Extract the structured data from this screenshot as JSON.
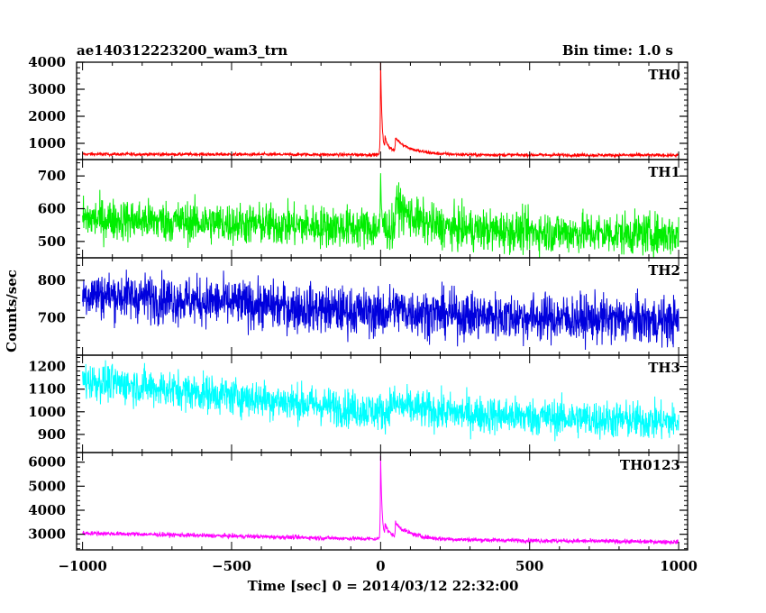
{
  "header": {
    "title": "ae140312223200_wam3_trn",
    "bin_time": "Bin time: 1.0 s"
  },
  "chart_data": {
    "type": "line",
    "xlabel": "Time [sec] 0 = 2014/03/12 22:32:00",
    "ylabel": "Counts/sec",
    "xlim": [
      -1020,
      1030
    ],
    "x_ticks": [
      -1000,
      -500,
      0,
      500,
      1000
    ],
    "x_tick_labels": [
      "−1000",
      "−500",
      "0",
      "500",
      "1000"
    ],
    "panels": [
      {
        "name": "TH0",
        "color": "#ff0000",
        "ylim": [
          400,
          4000
        ],
        "y_ticks": [
          1000,
          2000,
          3000,
          4000
        ],
        "y_tick_labels": [
          "1000",
          "2000",
          "3000",
          "4000"
        ],
        "baseline": [
          [
            -1000,
            600
          ],
          [
            0,
            580
          ],
          [
            1000,
            560
          ]
        ],
        "noise": 30,
        "peaks": [
          {
            "t": 0,
            "amp": 3400,
            "decay": 5
          },
          {
            "t": 15,
            "amp": 500,
            "decay": 25
          },
          {
            "t": 50,
            "amp": 500,
            "decay": 60
          }
        ]
      },
      {
        "name": "TH1",
        "color": "#00ee00",
        "ylim": [
          450,
          750
        ],
        "y_ticks": [
          500,
          600,
          700
        ],
        "y_tick_labels": [
          "500",
          "600",
          "700"
        ],
        "baseline": [
          [
            -1000,
            570
          ],
          [
            0,
            540
          ],
          [
            1000,
            520
          ]
        ],
        "noise": 32,
        "peaks": [
          {
            "t": 0,
            "amp": 130,
            "decay": 4
          },
          {
            "t": 50,
            "amp": 80,
            "decay": 70
          }
        ]
      },
      {
        "name": "TH2",
        "color": "#0000dd",
        "ylim": [
          600,
          860
        ],
        "y_ticks": [
          700,
          800
        ],
        "y_tick_labels": [
          "700",
          "800"
        ],
        "baseline": [
          [
            -1000,
            765
          ],
          [
            0,
            712
          ],
          [
            1000,
            690
          ]
        ],
        "noise": 32,
        "peaks": [
          {
            "t": 30,
            "amp": 15,
            "decay": 100
          }
        ]
      },
      {
        "name": "TH3",
        "color": "#00ffff",
        "ylim": [
          820,
          1250
        ],
        "y_ticks": [
          900,
          1000,
          1100,
          1200
        ],
        "y_tick_labels": [
          "900",
          "1000",
          "1100",
          "1200"
        ],
        "baseline": [
          [
            -1000,
            1140
          ],
          [
            0,
            1000
          ],
          [
            1000,
            955
          ]
        ],
        "noise": 42,
        "peaks": [
          {
            "t": 30,
            "amp": 40,
            "decay": 120
          }
        ]
      },
      {
        "name": "TH0123",
        "color": "#ff00ff",
        "ylim": [
          2350,
          6400
        ],
        "y_ticks": [
          3000,
          4000,
          5000,
          6000
        ],
        "y_tick_labels": [
          "3000",
          "4000",
          "5000",
          "6000"
        ],
        "baseline": [
          [
            -1000,
            3050
          ],
          [
            0,
            2800
          ],
          [
            1000,
            2680
          ]
        ],
        "noise": 45,
        "peaks": [
          {
            "t": 0,
            "amp": 3400,
            "decay": 5
          },
          {
            "t": 15,
            "amp": 500,
            "decay": 25
          },
          {
            "t": 50,
            "amp": 550,
            "decay": 60
          }
        ]
      }
    ]
  }
}
